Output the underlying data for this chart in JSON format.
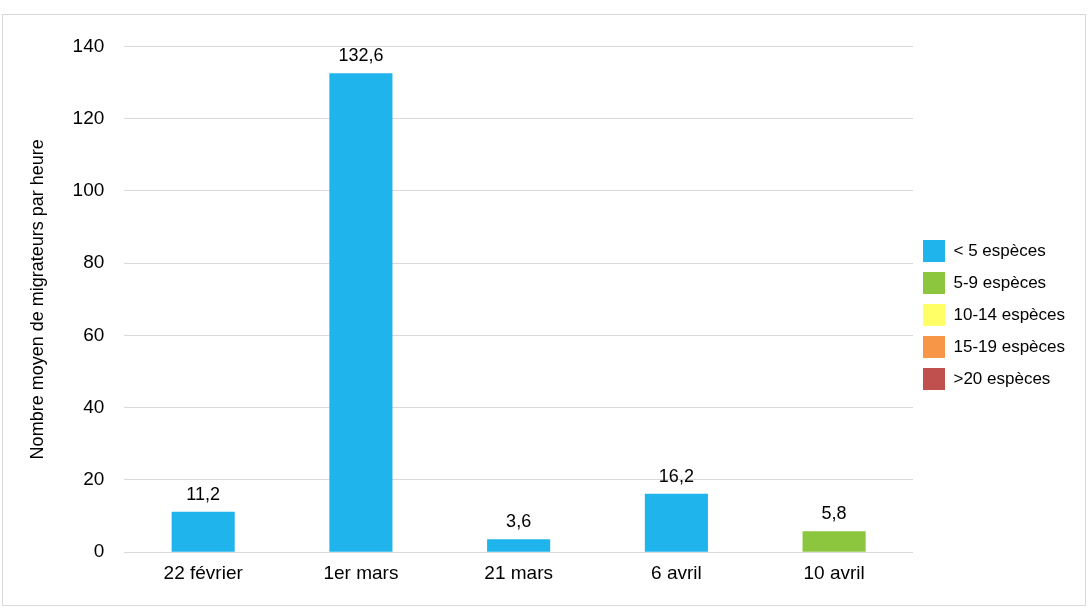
{
  "chart_data": {
    "type": "bar",
    "ylabel": "Nombre moyen de migrateurs par heure",
    "categories": [
      "22 février",
      "1er mars",
      "21 mars",
      "6 avril",
      "10 avril"
    ],
    "stacked": true,
    "ylim": [
      0,
      140
    ],
    "yticks": [
      0,
      20,
      40,
      60,
      80,
      100,
      120,
      140
    ],
    "grid": "y",
    "legend": "right",
    "series": [
      {
        "name": "< 5 espèces",
        "color": "#1fb4ec",
        "values": [
          11.2,
          132.6,
          3.6,
          16.2,
          null
        ],
        "value_labels": [
          "11,2",
          "132,6",
          "3,6",
          "16,2",
          null
        ]
      },
      {
        "name": "5-9 espèces",
        "color": "#8cc63f",
        "values": [
          null,
          null,
          null,
          null,
          5.8
        ],
        "value_labels": [
          null,
          null,
          null,
          null,
          "5,8"
        ]
      },
      {
        "name": "10-14 espèces",
        "color": "#ffff66",
        "values": [
          null,
          null,
          null,
          null,
          null
        ]
      },
      {
        "name": "15-19 espèces",
        "color": "#f79646",
        "values": [
          null,
          null,
          null,
          null,
          null
        ]
      },
      {
        "name": ">20 espèces",
        "color": "#c0504d",
        "values": [
          null,
          null,
          null,
          null,
          null
        ]
      }
    ]
  }
}
